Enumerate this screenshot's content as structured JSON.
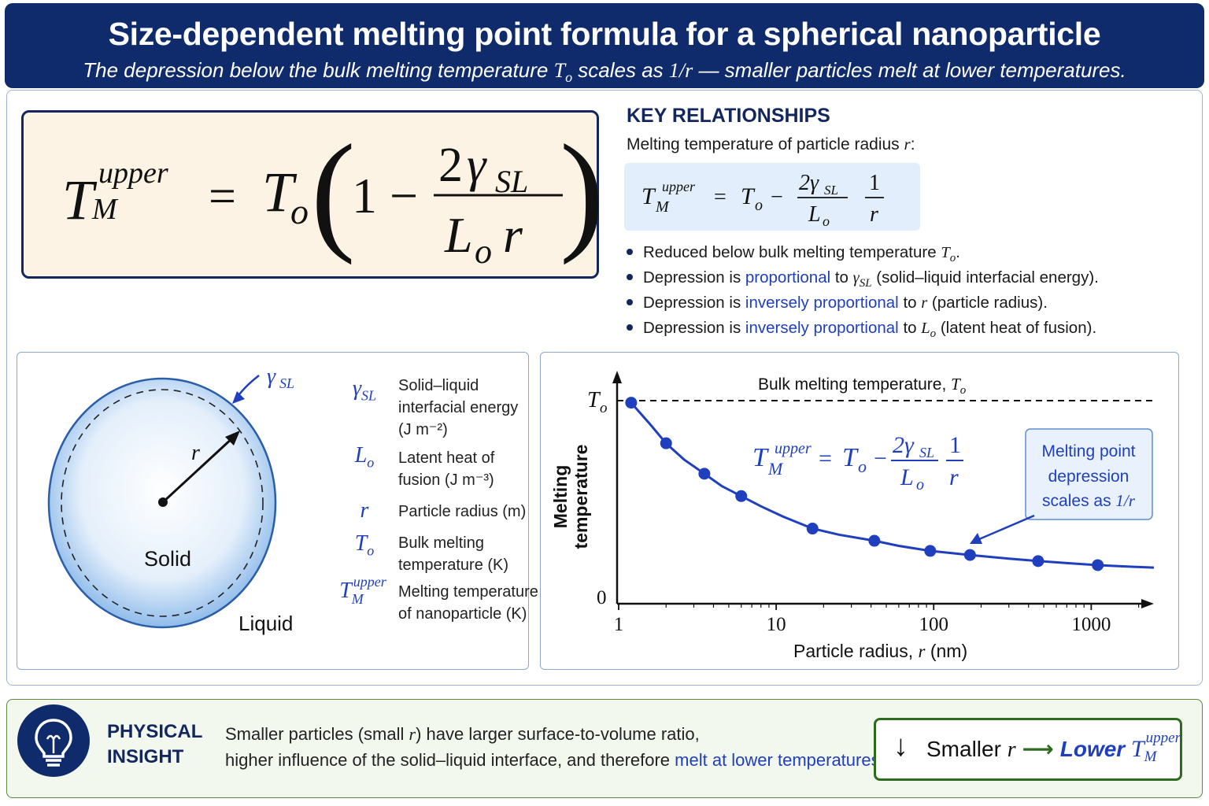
{
  "header": {
    "title": "Size-dependent melting point formula for a spherical nanoparticle",
    "subtitle_pre": "The depression below the bulk melting temperature ",
    "subtitle_T": "T",
    "subtitle_o": "o",
    "subtitle_mid": " scales as ",
    "subtitle_frac": "1/r",
    "subtitle_post": " — smaller particles melt at lower temperatures."
  },
  "formula": {
    "T": "T",
    "sup": "upper",
    "sub": "M",
    "eq": "=",
    "To_T": "T",
    "To_o": "o",
    "lparen": "(",
    "one": "1",
    "minus": "−",
    "num_2": "2",
    "num_gamma": "γ",
    "num_sl": "SL",
    "den_L": "L",
    "den_o": "o",
    "den_r": "r",
    "rparen": ")"
  },
  "key": {
    "title": "KEY RELATIONSHIPS",
    "intro": "Melting temperature of particle radius ",
    "intro_r": "r",
    "intro_colon": ":",
    "formula": {
      "T": "T",
      "sup": "upper",
      "sub": "M",
      "eq": "=",
      "To_T": "T",
      "To_o": "o",
      "minus": "−",
      "num": "2γ",
      "num_sub": "SL",
      "den_L": "L",
      "den_o": "o",
      "one": "1",
      "r": "r"
    },
    "bullets": [
      {
        "pre": "Reduced below bulk melting temperature ",
        "hl": "",
        "sym": "T",
        "sym_sub": "o",
        "post": "."
      },
      {
        "pre": "Depression is ",
        "hl": "proportional",
        "mid": " to ",
        "sym": "γ",
        "sym_sub": "SL",
        "post": " (solid–liquid interfacial energy)."
      },
      {
        "pre": "Depression is ",
        "hl": "inversely proportional",
        "mid": " to ",
        "sym": "r",
        "sym_sub": "",
        "post": " (particle radius)."
      },
      {
        "pre": "Depression is ",
        "hl": "inversely proportional",
        "mid": " to ",
        "sym": "L",
        "sym_sub": "o",
        "post": " (latent heat of fusion)."
      }
    ]
  },
  "particle": {
    "gamma": "γ",
    "gamma_sub": "SL",
    "r": "r",
    "solid": "Solid",
    "liquid": "Liquid"
  },
  "symbols": [
    {
      "sym": "γ",
      "sub": "SL",
      "sup": "",
      "desc": [
        "Solid–liquid",
        "interfacial energy",
        "(J m⁻²)"
      ]
    },
    {
      "sym": "L",
      "sub": "o",
      "sup": "",
      "desc": [
        "Latent heat of",
        "fusion (J m⁻³)"
      ]
    },
    {
      "sym": "r",
      "sub": "",
      "sup": "",
      "desc": [
        "Particle radius (m)"
      ]
    },
    {
      "sym": "T",
      "sub": "o",
      "sup": "",
      "desc": [
        "Bulk melting",
        "temperature (K)"
      ]
    },
    {
      "sym": "T",
      "sub": "M",
      "sup": "upper",
      "desc": [
        "Melting temperature",
        "of nanoparticle (K)"
      ]
    }
  ],
  "chart_data": {
    "type": "line",
    "xlabel": "Particle radius, r (nm)",
    "xlabel_pre": "Particle radius, ",
    "xlabel_r": "r",
    "xlabel_post": " (nm)",
    "ylabel": "Melting temperature",
    "ylabel_line1": "Melting",
    "ylabel_line2": "temperature",
    "x_scale": "log",
    "xlim": [
      1,
      2500
    ],
    "ylim": [
      0,
      1
    ],
    "x_ticks": [
      "1",
      "10",
      "100",
      "1000"
    ],
    "y_ticks": [
      "0",
      "T_o"
    ],
    "y_tick_zero": "0",
    "y_tick_top_T": "T",
    "y_tick_top_o": "o",
    "reference_line": {
      "label_pre": "Bulk melting temperature, ",
      "label_T": "T",
      "label_o": "o",
      "value": 1
    },
    "series": [
      {
        "points_x": [
          1.2,
          2,
          3.5,
          6,
          17,
          42,
          95,
          170,
          460,
          1100
        ],
        "points_y": [
          0.99,
          0.79,
          0.64,
          0.53,
          0.37,
          0.31,
          0.26,
          0.24,
          0.21,
          0.19
        ],
        "curve_x": [
          1.2,
          1.6,
          2,
          2.6,
          3.5,
          4.5,
          6,
          8,
          11,
          17,
          25,
          42,
          60,
          95,
          170,
          300,
          460,
          700,
          1100,
          1800,
          2500
        ],
        "curve_y": [
          0.99,
          0.88,
          0.79,
          0.71,
          0.64,
          0.58,
          0.53,
          0.48,
          0.43,
          0.37,
          0.34,
          0.31,
          0.285,
          0.26,
          0.24,
          0.222,
          0.21,
          0.2,
          0.19,
          0.182,
          0.178
        ]
      }
    ],
    "annotation": {
      "line1": "Melting point",
      "line2": "depression",
      "line3": "scales as ",
      "frac": "1/r"
    },
    "formula": {
      "T": "T",
      "sup": "upper",
      "sub": "M",
      "eq": "=",
      "To_T": "T",
      "To_o": "o",
      "minus": "−",
      "num": "2γ",
      "num_sub": "SL",
      "den_L": "L",
      "den_o": "o",
      "one": "1",
      "r": "r"
    }
  },
  "insight": {
    "label_line1": "PHYSICAL",
    "label_line2": "INSIGHT",
    "text_line1_pre": "Smaller particles (small ",
    "text_line1_r": "r",
    "text_line1_post": ") have larger surface-to-volume ratio,",
    "text_line2_pre": "higher influence of the solid–liquid interface, and therefore ",
    "text_line2_hl": "melt at lower temperatures.",
    "box_arrow": "↓",
    "box_smaller": "Smaller ",
    "box_r": "r",
    "box_arrow_right": "⟶",
    "box_lower": "Lower ",
    "box_T": "T",
    "box_sup": "upper",
    "box_sub": "M"
  },
  "colors": {
    "header_bg": "#0f2b6b",
    "accent_blue": "#1f3fbf",
    "formula_bg": "#fcf3e4",
    "insight_green": "#2d6b1f"
  }
}
